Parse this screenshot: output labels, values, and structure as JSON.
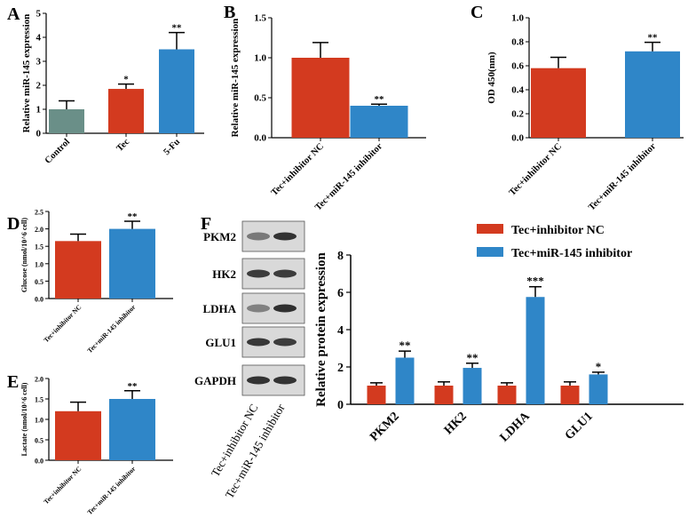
{
  "colors": {
    "control": "#6a8f88",
    "red": "#d33a1f",
    "blue": "#2f86c8",
    "blot_bg": "#d9d9d9",
    "band": "#2a2a2a"
  },
  "panel_labels": {
    "A": "A",
    "B": "B",
    "C": "C",
    "D": "D",
    "E": "E",
    "F": "F"
  },
  "chart_data": [
    {
      "id": "A",
      "type": "bar",
      "ylabel": "Relative  miR-145 expression",
      "categories": [
        "Control",
        "Tec",
        "5-Fu"
      ],
      "values": [
        1.0,
        1.85,
        3.5
      ],
      "errors": [
        0.35,
        0.2,
        0.7
      ],
      "significance": [
        "",
        "*",
        "**"
      ],
      "ylim": [
        0,
        5
      ],
      "yticks": [
        "0",
        "1",
        "2",
        "3",
        "4",
        "5"
      ]
    },
    {
      "id": "B",
      "type": "bar",
      "ylabel": "Relative miR-145 expression",
      "categories": [
        "Tec+inhibitor NC",
        "Tec+miR-145 inhibitor"
      ],
      "values": [
        1.0,
        0.4
      ],
      "errors": [
        0.19,
        0.02
      ],
      "significance": [
        "",
        "**"
      ],
      "ylim": [
        0,
        1.5
      ],
      "yticks": [
        "0.0",
        "0.5",
        "1.0",
        "1.5"
      ]
    },
    {
      "id": "C",
      "type": "bar",
      "ylabel": "OD 450(nm)",
      "categories": [
        "Tec+inhibitor NC",
        "Tec+miR-145 inhibitor"
      ],
      "values": [
        0.58,
        0.72
      ],
      "errors": [
        0.09,
        0.075
      ],
      "significance": [
        "",
        "**"
      ],
      "ylim": [
        0,
        1.0
      ],
      "yticks": [
        "0.0",
        "0.2",
        "0.4",
        "0.6",
        "0.8",
        "1.0"
      ]
    },
    {
      "id": "D",
      "type": "bar",
      "ylabel": "Glucose (nmol/10^6 cell)",
      "categories": [
        "Tec+inhibitor NC",
        "Tec+miR-145 inhibitor"
      ],
      "values": [
        1.65,
        2.0
      ],
      "errors": [
        0.2,
        0.22
      ],
      "significance": [
        "",
        "**"
      ],
      "ylim": [
        0,
        2.5
      ],
      "yticks": [
        "0.0",
        "0.5",
        "1.0",
        "1.5",
        "2.0",
        "2.5"
      ]
    },
    {
      "id": "E",
      "type": "bar",
      "ylabel": "Lactate (nmol/10^6 cell)",
      "categories": [
        "Tec+inhibitor NC",
        "Tec+miR-145 inhibitor"
      ],
      "values": [
        1.2,
        1.5
      ],
      "errors": [
        0.22,
        0.2
      ],
      "significance": [
        "",
        "**"
      ],
      "ylim": [
        0,
        2.0
      ],
      "yticks": [
        "0.0",
        "0.5",
        "1.0",
        "1.5",
        "2.0"
      ]
    },
    {
      "id": "F",
      "type": "bar",
      "ylabel": "Relative  protein expression",
      "categories": [
        "PKM2",
        "HK2",
        "LDHA",
        "GLU1"
      ],
      "series": [
        {
          "name": "Tec+inhibitor NC",
          "values": [
            1.0,
            1.0,
            1.0,
            1.0
          ],
          "errors": [
            0.15,
            0.2,
            0.15,
            0.2
          ]
        },
        {
          "name": "Tec+miR-145 inhibitor",
          "values": [
            2.5,
            1.95,
            5.75,
            1.6
          ],
          "errors": [
            0.35,
            0.25,
            0.55,
            0.12
          ]
        }
      ],
      "significance": [
        "**",
        "**",
        "***",
        "*"
      ],
      "ylim": [
        0,
        8
      ],
      "yticks": [
        "0",
        "2",
        "4",
        "6",
        "8"
      ],
      "legend": "top-right"
    }
  ],
  "western_blot": {
    "bands": [
      "PKM2",
      "HK2",
      "LDHA",
      "GLU1",
      "GAPDH"
    ],
    "lanes": [
      "Tec+inhibitor NC",
      "Tec+miR-145 inhibitor"
    ]
  }
}
